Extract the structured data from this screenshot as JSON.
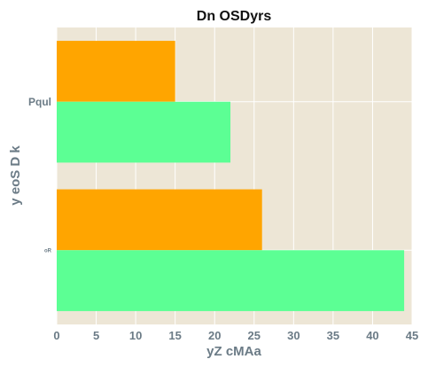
{
  "chart_data": {
    "type": "bar",
    "orientation": "horizontal",
    "title": "Dn OSDyrs",
    "xlabel": "yZ cMAa",
    "ylabel": "y eoS D k",
    "categories": [
      "Pqul",
      "oR"
    ],
    "series": [
      {
        "values": [
          15,
          26
        ],
        "color": "#ffa500"
      },
      {
        "values": [
          22,
          44
        ],
        "color": "#5cff94"
      }
    ],
    "xlim": [
      0,
      45
    ],
    "xticks": [
      0,
      5,
      10,
      15,
      20,
      25,
      30,
      35,
      40,
      45
    ],
    "grid": true,
    "legend": "none",
    "colors": {
      "plot_background": "#ede6d6",
      "grid": "#ffffff",
      "axis_text": "#6b7b86",
      "title": "#111111"
    }
  }
}
